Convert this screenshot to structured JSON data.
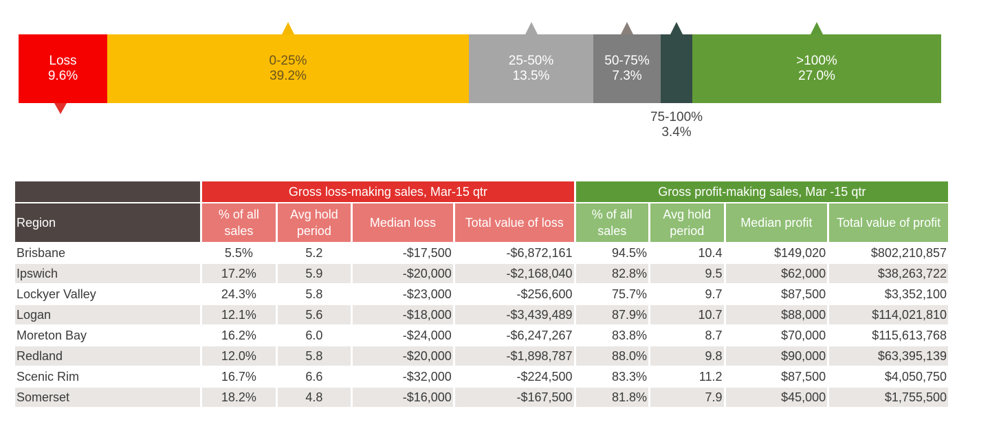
{
  "chart_data": [
    {
      "type": "bar",
      "stacked": true,
      "orientation": "horizontal",
      "segments": [
        {
          "label": "Loss",
          "value": 9.6,
          "value_label": "9.6%",
          "color": "#f40100",
          "text_color": "#ffffff",
          "pointer": "down",
          "pointer_color": "#e2302c"
        },
        {
          "label": "0-25%",
          "value": 39.2,
          "value_label": "39.2%",
          "color": "#fbbd02",
          "text_color": "#6b5320",
          "pointer": "up",
          "pointer_color": "#f5b800"
        },
        {
          "label": "25-50%",
          "value": 13.5,
          "value_label": "13.5%",
          "color": "#a6a6a6",
          "text_color": "#ffffff",
          "pointer": "up",
          "pointer_color": "#a6a6a6"
        },
        {
          "label": "50-75%",
          "value": 7.3,
          "value_label": "7.3%",
          "color": "#7e7e7e",
          "text_color": "#ffffff",
          "pointer": "up",
          "pointer_color": "#8a807a"
        },
        {
          "label": "75-100%",
          "value": 3.4,
          "value_label": "3.4%",
          "color": "#344c47",
          "text_color": "#444444",
          "pointer": "up",
          "pointer_color": "#344c47",
          "label_outside": true
        },
        {
          "label": ">100%",
          "value": 27.0,
          "value_label": "27.0%",
          "color": "#629c36",
          "text_color": "#ffffff",
          "pointer": "up",
          "pointer_color": "#5c9a37"
        }
      ]
    },
    {
      "type": "table",
      "group_headers": [
        "Gross loss-making sales, Mar-15 qtr",
        "Gross profit-making sales, Mar -15 qtr"
      ],
      "columns": {
        "region": "Region",
        "loss": [
          "% of all sales",
          "Avg hold period",
          "Median loss",
          "Total value of loss"
        ],
        "profit": [
          "% of all sales",
          "Avg hold period",
          "Median profit",
          "Total value of profit"
        ]
      },
      "rows": [
        {
          "region": "Brisbane",
          "loss_pct": "5.5%",
          "loss_hold": "5.2",
          "median_loss": "-$17,500",
          "total_loss": "-$6,872,161",
          "profit_pct": "94.5%",
          "profit_hold": "10.4",
          "median_profit": "$149,020",
          "total_profit": "$802,210,857"
        },
        {
          "region": "Ipswich",
          "loss_pct": "17.2%",
          "loss_hold": "5.9",
          "median_loss": "-$20,000",
          "total_loss": "-$2,168,040",
          "profit_pct": "82.8%",
          "profit_hold": "9.5",
          "median_profit": "$62,000",
          "total_profit": "$38,263,722"
        },
        {
          "region": "Lockyer Valley",
          "loss_pct": "24.3%",
          "loss_hold": "5.8",
          "median_loss": "-$23,000",
          "total_loss": "-$256,600",
          "profit_pct": "75.7%",
          "profit_hold": "9.7",
          "median_profit": "$87,500",
          "total_profit": "$3,352,100"
        },
        {
          "region": "Logan",
          "loss_pct": "12.1%",
          "loss_hold": "5.6",
          "median_loss": "-$18,000",
          "total_loss": "-$3,439,489",
          "profit_pct": "87.9%",
          "profit_hold": "10.7",
          "median_profit": "$88,000",
          "total_profit": "$114,021,810"
        },
        {
          "region": "Moreton Bay",
          "loss_pct": "16.2%",
          "loss_hold": "6.0",
          "median_loss": "-$24,000",
          "total_loss": "-$6,247,267",
          "profit_pct": "83.8%",
          "profit_hold": "8.7",
          "median_profit": "$70,000",
          "total_profit": "$115,613,768"
        },
        {
          "region": "Redland",
          "loss_pct": "12.0%",
          "loss_hold": "5.8",
          "median_loss": "-$20,000",
          "total_loss": "-$1,898,787",
          "profit_pct": "88.0%",
          "profit_hold": "9.8",
          "median_profit": "$90,000",
          "total_profit": "$63,395,139"
        },
        {
          "region": "Scenic Rim",
          "loss_pct": "16.7%",
          "loss_hold": "6.6",
          "median_loss": "-$32,000",
          "total_loss": "-$224,500",
          "profit_pct": "83.3%",
          "profit_hold": "11.2",
          "median_profit": "$87,500",
          "total_profit": "$4,050,750"
        },
        {
          "region": "Somerset",
          "loss_pct": "18.2%",
          "loss_hold": "4.8",
          "median_loss": "-$16,000",
          "total_loss": "-$167,500",
          "profit_pct": "81.8%",
          "profit_hold": "7.9",
          "median_profit": "$45,000",
          "total_profit": "$1,755,500"
        }
      ]
    }
  ]
}
